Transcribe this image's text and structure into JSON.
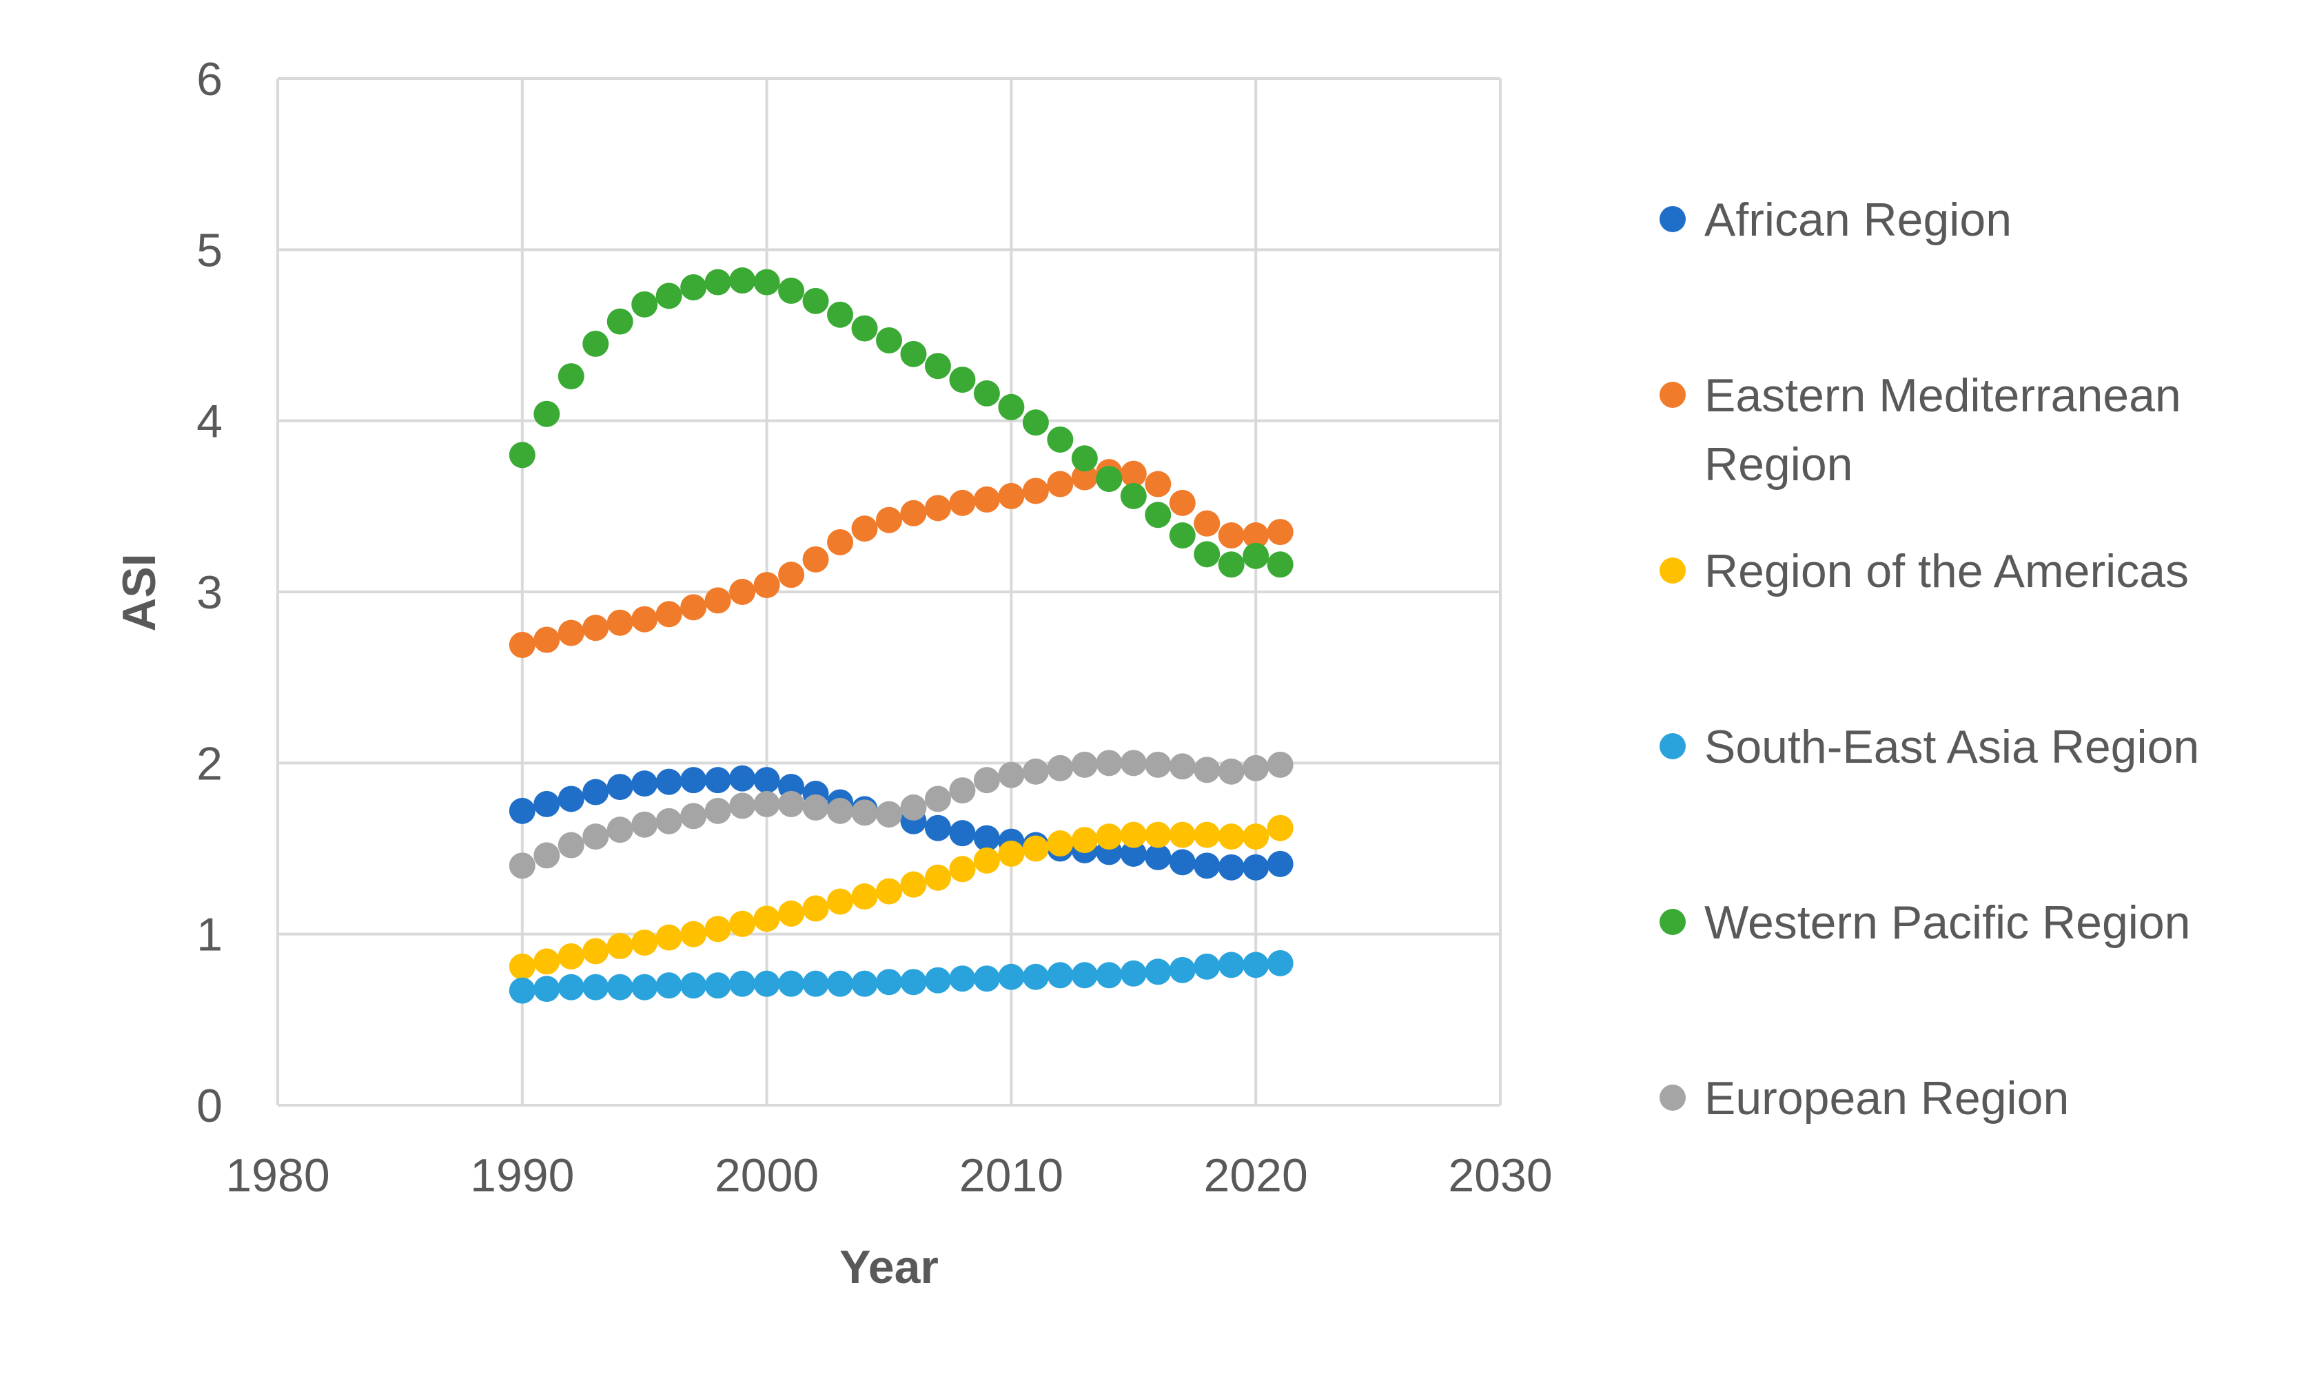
{
  "chart_data": {
    "type": "scatter",
    "title": "",
    "xlabel": "Year",
    "ylabel": "ASI",
    "xlim": [
      1980,
      2030
    ],
    "ylim": [
      0,
      6
    ],
    "xticks": [
      1980,
      1990,
      2000,
      2010,
      2020,
      2030
    ],
    "yticks": [
      0,
      1,
      2,
      3,
      4,
      5,
      6
    ],
    "xtick_labels": [
      "1980",
      "1990",
      "2000",
      "2010",
      "2020",
      "2030"
    ],
    "ytick_labels": [
      "0",
      "1",
      "2",
      "3",
      "4",
      "5",
      "6"
    ],
    "grid": true,
    "legend_position": "right",
    "x": [
      1990,
      1991,
      1992,
      1993,
      1994,
      1995,
      1996,
      1997,
      1998,
      1999,
      2000,
      2001,
      2002,
      2003,
      2004,
      2005,
      2006,
      2007,
      2008,
      2009,
      2010,
      2011,
      2012,
      2013,
      2014,
      2015,
      2016,
      2017,
      2018,
      2019,
      2020,
      2021
    ],
    "series": [
      {
        "name": "African Region",
        "legend_lines": [
          "African Region"
        ],
        "color": "#1f6fc8",
        "values": [
          1.72,
          1.76,
          1.79,
          1.83,
          1.86,
          1.88,
          1.89,
          1.9,
          1.9,
          1.91,
          1.9,
          1.86,
          1.82,
          1.77,
          1.73,
          1.7,
          1.66,
          1.62,
          1.59,
          1.56,
          1.54,
          1.52,
          1.5,
          1.49,
          1.48,
          1.47,
          1.45,
          1.42,
          1.4,
          1.39,
          1.39,
          1.41
        ]
      },
      {
        "name": "Eastern Mediterranean Region",
        "legend_lines": [
          "Eastern Mediterranean",
          "Region"
        ],
        "color": "#f07b2a",
        "values": [
          2.69,
          2.72,
          2.76,
          2.79,
          2.82,
          2.84,
          2.87,
          2.91,
          2.95,
          3.0,
          3.04,
          3.1,
          3.19,
          3.29,
          3.37,
          3.42,
          3.46,
          3.49,
          3.52,
          3.54,
          3.56,
          3.59,
          3.63,
          3.67,
          3.7,
          3.69,
          3.63,
          3.52,
          3.4,
          3.33,
          3.33,
          3.35
        ]
      },
      {
        "name": "Region of the Americas",
        "legend_lines": [
          "Region of the Americas"
        ],
        "color": "#ffc000",
        "values": [
          0.81,
          0.84,
          0.87,
          0.9,
          0.93,
          0.95,
          0.98,
          1.0,
          1.03,
          1.06,
          1.09,
          1.12,
          1.15,
          1.19,
          1.22,
          1.25,
          1.29,
          1.33,
          1.38,
          1.43,
          1.47,
          1.5,
          1.53,
          1.55,
          1.57,
          1.58,
          1.58,
          1.58,
          1.58,
          1.57,
          1.57,
          1.62
        ]
      },
      {
        "name": "South-East Asia Region",
        "legend_lines": [
          "South-East Asia Region"
        ],
        "color": "#2aa3dc",
        "values": [
          0.67,
          0.68,
          0.69,
          0.69,
          0.69,
          0.69,
          0.7,
          0.7,
          0.7,
          0.71,
          0.71,
          0.71,
          0.71,
          0.71,
          0.71,
          0.72,
          0.72,
          0.73,
          0.74,
          0.74,
          0.75,
          0.75,
          0.76,
          0.76,
          0.76,
          0.77,
          0.78,
          0.79,
          0.81,
          0.82,
          0.82,
          0.83
        ]
      },
      {
        "name": "Western Pacific Region",
        "legend_lines": [
          "Western Pacific Region"
        ],
        "color": "#3aaa35",
        "values": [
          3.8,
          4.04,
          4.26,
          4.45,
          4.58,
          4.68,
          4.73,
          4.78,
          4.81,
          4.82,
          4.81,
          4.76,
          4.7,
          4.62,
          4.54,
          4.47,
          4.39,
          4.32,
          4.24,
          4.16,
          4.08,
          3.99,
          3.89,
          3.78,
          3.66,
          3.56,
          3.45,
          3.33,
          3.22,
          3.16,
          3.21,
          3.16
        ]
      },
      {
        "name": "European Region",
        "legend_lines": [
          "European Region"
        ],
        "color": "#a5a5a5",
        "values": [
          1.4,
          1.46,
          1.52,
          1.57,
          1.61,
          1.64,
          1.66,
          1.69,
          1.72,
          1.75,
          1.76,
          1.76,
          1.74,
          1.72,
          1.71,
          1.7,
          1.74,
          1.79,
          1.84,
          1.9,
          1.93,
          1.95,
          1.97,
          1.99,
          2.0,
          2.0,
          1.99,
          1.98,
          1.96,
          1.95,
          1.97,
          1.99
        ]
      }
    ]
  }
}
